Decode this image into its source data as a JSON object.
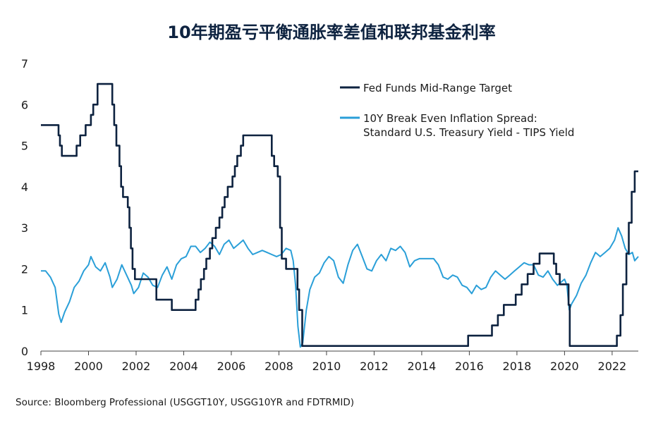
{
  "title": "10年期盈亏平衡通胀率差值和联邦基金利率",
  "source": "Source: Bloomberg Professional (USGGT10Y, USGG10YR and FDTRMID)",
  "chart_data": {
    "type": "line",
    "xlim": [
      1998,
      2023.1
    ],
    "ylim": [
      0,
      7
    ],
    "x_ticks": [
      "1998",
      "2000",
      "2002",
      "2004",
      "2006",
      "2008",
      "2010",
      "2012",
      "2014",
      "2016",
      "2018",
      "2020",
      "2022"
    ],
    "y_ticks": [
      "0",
      "1",
      "2",
      "3",
      "4",
      "5",
      "6",
      "7"
    ],
    "grid": false,
    "legend_position": "top-right",
    "series": [
      {
        "name": "Fed Funds Mid-Range Target",
        "color": "#0e2340",
        "step": true,
        "points": [
          [
            1998.0,
            5.5
          ],
          [
            1998.74,
            5.25
          ],
          [
            1998.8,
            5.0
          ],
          [
            1998.88,
            4.75
          ],
          [
            1999.5,
            5.0
          ],
          [
            1999.65,
            5.25
          ],
          [
            1999.88,
            5.5
          ],
          [
            2000.1,
            5.75
          ],
          [
            2000.2,
            6.0
          ],
          [
            2000.38,
            6.5
          ],
          [
            2001.0,
            6.0
          ],
          [
            2001.08,
            5.5
          ],
          [
            2001.17,
            5.0
          ],
          [
            2001.3,
            4.5
          ],
          [
            2001.37,
            4.0
          ],
          [
            2001.45,
            3.75
          ],
          [
            2001.65,
            3.5
          ],
          [
            2001.72,
            3.0
          ],
          [
            2001.78,
            2.5
          ],
          [
            2001.85,
            2.0
          ],
          [
            2001.95,
            1.75
          ],
          [
            2002.85,
            1.25
          ],
          [
            2003.5,
            1.0
          ],
          [
            2004.5,
            1.25
          ],
          [
            2004.62,
            1.5
          ],
          [
            2004.72,
            1.75
          ],
          [
            2004.85,
            2.0
          ],
          [
            2004.95,
            2.25
          ],
          [
            2005.1,
            2.5
          ],
          [
            2005.2,
            2.75
          ],
          [
            2005.35,
            3.0
          ],
          [
            2005.5,
            3.25
          ],
          [
            2005.62,
            3.5
          ],
          [
            2005.72,
            3.75
          ],
          [
            2005.85,
            4.0
          ],
          [
            2006.05,
            4.25
          ],
          [
            2006.15,
            4.5
          ],
          [
            2006.25,
            4.75
          ],
          [
            2006.4,
            5.0
          ],
          [
            2006.5,
            5.25
          ],
          [
            2007.7,
            4.75
          ],
          [
            2007.8,
            4.5
          ],
          [
            2007.95,
            4.25
          ],
          [
            2008.05,
            3.0
          ],
          [
            2008.12,
            2.25
          ],
          [
            2008.3,
            2.0
          ],
          [
            2008.78,
            1.5
          ],
          [
            2008.85,
            1.0
          ],
          [
            2008.98,
            0.125
          ],
          [
            2015.95,
            0.375
          ],
          [
            2016.95,
            0.625
          ],
          [
            2017.2,
            0.875
          ],
          [
            2017.45,
            1.125
          ],
          [
            2017.95,
            1.375
          ],
          [
            2018.2,
            1.625
          ],
          [
            2018.45,
            1.875
          ],
          [
            2018.7,
            2.125
          ],
          [
            2018.95,
            2.375
          ],
          [
            2019.55,
            2.125
          ],
          [
            2019.65,
            1.875
          ],
          [
            2019.8,
            1.625
          ],
          [
            2020.17,
            1.125
          ],
          [
            2020.22,
            0.125
          ],
          [
            2022.2,
            0.375
          ],
          [
            2022.35,
            0.875
          ],
          [
            2022.45,
            1.625
          ],
          [
            2022.6,
            2.375
          ],
          [
            2022.7,
            3.125
          ],
          [
            2022.82,
            3.875
          ],
          [
            2022.95,
            4.375
          ],
          [
            2023.1,
            4.375
          ]
        ]
      },
      {
        "name": "10Y Break Even Inflation Spread:",
        "name_line2": "Standard U.S. Treasury Yield - TIPS Yield",
        "color": "#2a9fd8",
        "step": false,
        "points": [
          [
            1998.0,
            1.95
          ],
          [
            1998.2,
            1.95
          ],
          [
            1998.4,
            1.8
          ],
          [
            1998.6,
            1.55
          ],
          [
            1998.75,
            0.9
          ],
          [
            1998.85,
            0.7
          ],
          [
            1999.0,
            0.95
          ],
          [
            1999.2,
            1.2
          ],
          [
            1999.4,
            1.55
          ],
          [
            1999.6,
            1.7
          ],
          [
            1999.8,
            1.95
          ],
          [
            2000.0,
            2.1
          ],
          [
            2000.1,
            2.3
          ],
          [
            2000.3,
            2.05
          ],
          [
            2000.5,
            1.95
          ],
          [
            2000.7,
            2.15
          ],
          [
            2000.9,
            1.8
          ],
          [
            2001.0,
            1.55
          ],
          [
            2001.2,
            1.75
          ],
          [
            2001.4,
            2.1
          ],
          [
            2001.6,
            1.85
          ],
          [
            2001.8,
            1.6
          ],
          [
            2001.9,
            1.4
          ],
          [
            2002.1,
            1.55
          ],
          [
            2002.3,
            1.9
          ],
          [
            2002.5,
            1.8
          ],
          [
            2002.7,
            1.6
          ],
          [
            2002.9,
            1.55
          ],
          [
            2003.1,
            1.85
          ],
          [
            2003.3,
            2.05
          ],
          [
            2003.5,
            1.75
          ],
          [
            2003.7,
            2.1
          ],
          [
            2003.9,
            2.25
          ],
          [
            2004.1,
            2.3
          ],
          [
            2004.3,
            2.55
          ],
          [
            2004.5,
            2.55
          ],
          [
            2004.7,
            2.4
          ],
          [
            2004.9,
            2.5
          ],
          [
            2005.1,
            2.65
          ],
          [
            2005.3,
            2.55
          ],
          [
            2005.5,
            2.35
          ],
          [
            2005.7,
            2.6
          ],
          [
            2005.9,
            2.7
          ],
          [
            2006.1,
            2.5
          ],
          [
            2006.3,
            2.6
          ],
          [
            2006.5,
            2.7
          ],
          [
            2006.7,
            2.5
          ],
          [
            2006.9,
            2.35
          ],
          [
            2007.1,
            2.4
          ],
          [
            2007.3,
            2.45
          ],
          [
            2007.5,
            2.4
          ],
          [
            2007.7,
            2.35
          ],
          [
            2007.9,
            2.3
          ],
          [
            2008.1,
            2.35
          ],
          [
            2008.3,
            2.5
          ],
          [
            2008.5,
            2.45
          ],
          [
            2008.6,
            2.2
          ],
          [
            2008.7,
            1.6
          ],
          [
            2008.8,
            0.6
          ],
          [
            2008.9,
            0.1
          ],
          [
            2009.0,
            0.2
          ],
          [
            2009.15,
            1.0
          ],
          [
            2009.3,
            1.5
          ],
          [
            2009.5,
            1.8
          ],
          [
            2009.7,
            1.9
          ],
          [
            2009.9,
            2.15
          ],
          [
            2010.1,
            2.3
          ],
          [
            2010.3,
            2.2
          ],
          [
            2010.5,
            1.8
          ],
          [
            2010.7,
            1.65
          ],
          [
            2010.9,
            2.1
          ],
          [
            2011.1,
            2.45
          ],
          [
            2011.3,
            2.6
          ],
          [
            2011.5,
            2.3
          ],
          [
            2011.7,
            2.0
          ],
          [
            2011.9,
            1.95
          ],
          [
            2012.1,
            2.2
          ],
          [
            2012.3,
            2.35
          ],
          [
            2012.5,
            2.2
          ],
          [
            2012.7,
            2.5
          ],
          [
            2012.9,
            2.45
          ],
          [
            2013.1,
            2.55
          ],
          [
            2013.3,
            2.4
          ],
          [
            2013.5,
            2.05
          ],
          [
            2013.7,
            2.2
          ],
          [
            2013.9,
            2.25
          ],
          [
            2014.1,
            2.25
          ],
          [
            2014.3,
            2.25
          ],
          [
            2014.5,
            2.25
          ],
          [
            2014.7,
            2.1
          ],
          [
            2014.9,
            1.8
          ],
          [
            2015.1,
            1.75
          ],
          [
            2015.3,
            1.85
          ],
          [
            2015.5,
            1.8
          ],
          [
            2015.7,
            1.6
          ],
          [
            2015.9,
            1.55
          ],
          [
            2016.1,
            1.4
          ],
          [
            2016.3,
            1.6
          ],
          [
            2016.5,
            1.5
          ],
          [
            2016.7,
            1.55
          ],
          [
            2016.9,
            1.8
          ],
          [
            2017.1,
            1.95
          ],
          [
            2017.3,
            1.85
          ],
          [
            2017.5,
            1.75
          ],
          [
            2017.7,
            1.85
          ],
          [
            2017.9,
            1.95
          ],
          [
            2018.1,
            2.05
          ],
          [
            2018.3,
            2.15
          ],
          [
            2018.5,
            2.1
          ],
          [
            2018.7,
            2.1
          ],
          [
            2018.9,
            1.85
          ],
          [
            2019.1,
            1.8
          ],
          [
            2019.3,
            1.95
          ],
          [
            2019.5,
            1.75
          ],
          [
            2019.7,
            1.6
          ],
          [
            2019.9,
            1.7
          ],
          [
            2020.0,
            1.75
          ],
          [
            2020.1,
            1.6
          ],
          [
            2020.2,
            1.0
          ],
          [
            2020.3,
            1.15
          ],
          [
            2020.5,
            1.35
          ],
          [
            2020.7,
            1.65
          ],
          [
            2020.9,
            1.85
          ],
          [
            2021.1,
            2.15
          ],
          [
            2021.3,
            2.4
          ],
          [
            2021.5,
            2.3
          ],
          [
            2021.7,
            2.4
          ],
          [
            2021.9,
            2.5
          ],
          [
            2022.1,
            2.7
          ],
          [
            2022.25,
            3.0
          ],
          [
            2022.4,
            2.8
          ],
          [
            2022.55,
            2.5
          ],
          [
            2022.7,
            2.35
          ],
          [
            2022.85,
            2.4
          ],
          [
            2022.95,
            2.2
          ],
          [
            2023.1,
            2.3
          ]
        ]
      }
    ]
  }
}
